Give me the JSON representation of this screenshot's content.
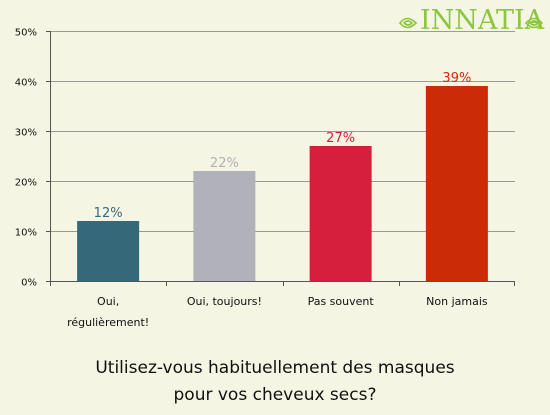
{
  "brand": {
    "logo_text": "INNATIA",
    "logo_color": "#8cc63f"
  },
  "question": {
    "line1": "Utilisez-vous habituellement des masques",
    "line2": "pour vos cheveux secs?"
  },
  "chart_data": {
    "type": "bar",
    "title": "",
    "xlabel": "",
    "ylabel": "",
    "ylim": [
      0,
      50
    ],
    "yticks": [
      0,
      10,
      20,
      30,
      40,
      50
    ],
    "ytick_labels": [
      "0%",
      "10%",
      "20%",
      "30%",
      "40%",
      "50%"
    ],
    "grid": true,
    "categories": [
      [
        "Oui,",
        "régulièrement!"
      ],
      [
        "Oui, toujours!"
      ],
      [
        "Pas souvent"
      ],
      [
        "Non jamais"
      ]
    ],
    "values": [
      12,
      22,
      27,
      39
    ],
    "value_labels": [
      "12%",
      "22%",
      "27%",
      "39%"
    ],
    "colors": [
      "#35697a",
      "#b1b1bb",
      "#d51f3c",
      "#cc2b07"
    ]
  }
}
